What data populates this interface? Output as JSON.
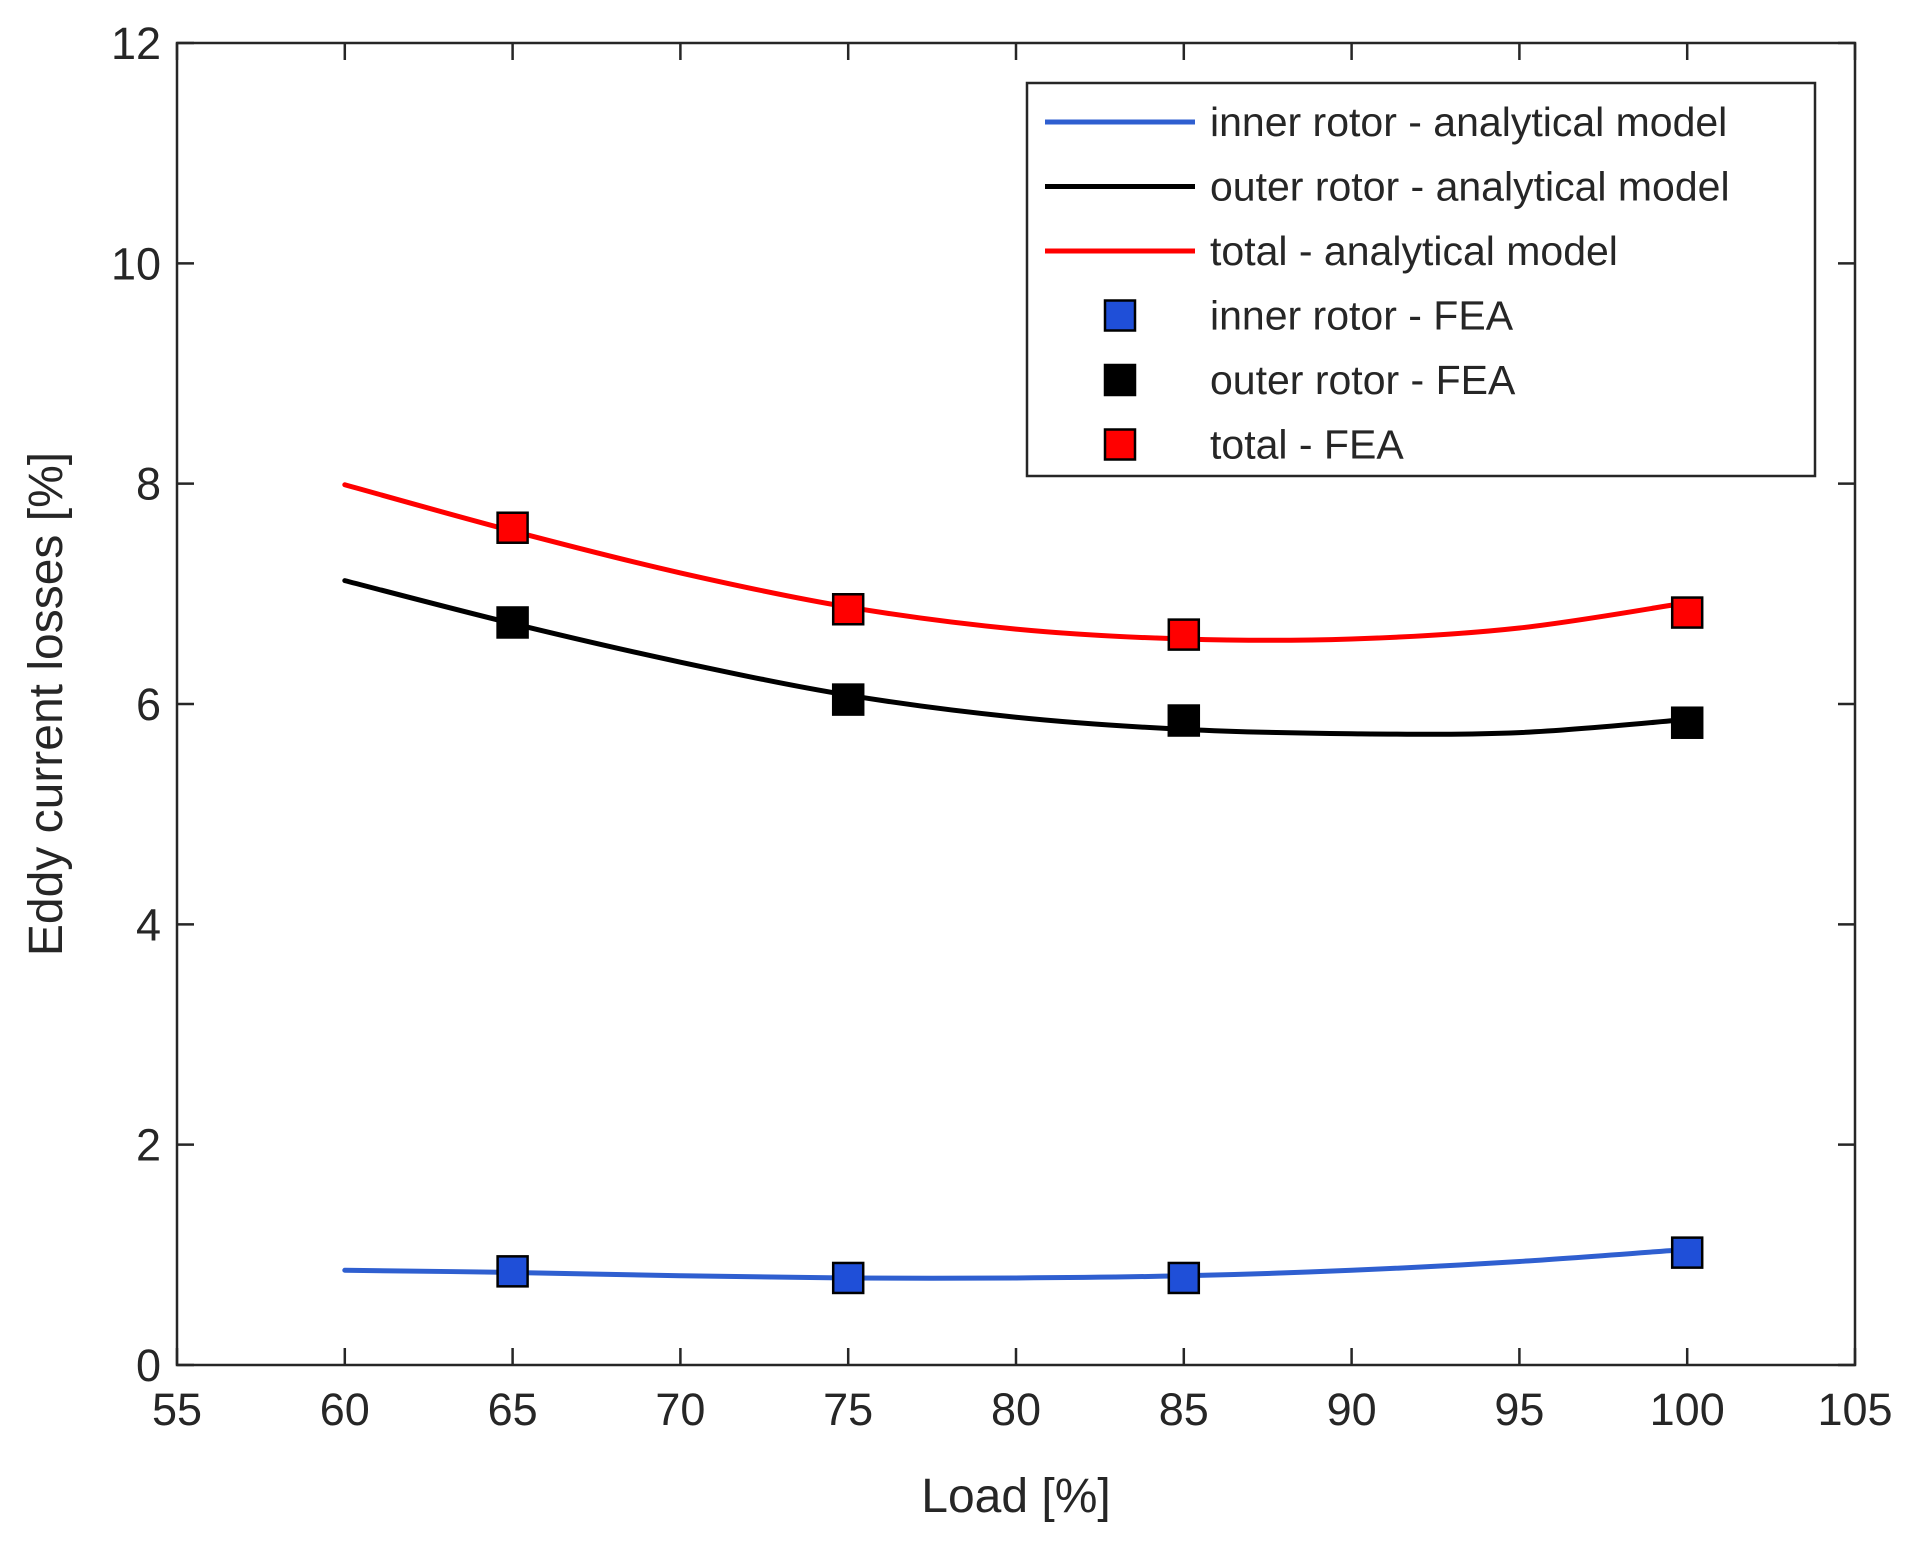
{
  "chart_data": {
    "type": "line",
    "title": "",
    "xlabel": "Load [%]",
    "ylabel": "Eddy current losses [%]",
    "xlim": [
      55,
      105
    ],
    "ylim": [
      0,
      12
    ],
    "xticks": [
      55,
      60,
      65,
      70,
      75,
      80,
      85,
      90,
      95,
      100,
      105
    ],
    "yticks": [
      0,
      2,
      4,
      6,
      8,
      10,
      12
    ],
    "grid": false,
    "legend_position": "top-right",
    "series": [
      {
        "name": "inner rotor - analytical model",
        "kind": "line",
        "color": "#2f5fd0",
        "x": [
          60,
          65,
          70,
          75,
          80,
          85,
          90,
          95,
          100
        ],
        "y": [
          0.86,
          0.84,
          0.81,
          0.79,
          0.79,
          0.81,
          0.86,
          0.94,
          1.05
        ]
      },
      {
        "name": "outer rotor - analytical model",
        "kind": "line",
        "color": "#000000",
        "x": [
          60,
          65,
          70,
          75,
          80,
          85,
          90,
          95,
          100
        ],
        "y": [
          7.12,
          6.73,
          6.38,
          6.08,
          5.88,
          5.77,
          5.73,
          5.74,
          5.86
        ]
      },
      {
        "name": "total - analytical model",
        "kind": "line",
        "color": "#ff0000",
        "x": [
          60,
          65,
          70,
          75,
          80,
          85,
          90,
          95,
          100
        ],
        "y": [
          7.99,
          7.57,
          7.19,
          6.88,
          6.68,
          6.59,
          6.59,
          6.69,
          6.92
        ]
      },
      {
        "name": "inner rotor - FEA",
        "kind": "marker",
        "color": "#1f4fd8",
        "x": [
          65,
          75,
          85,
          100
        ],
        "y": [
          0.85,
          0.79,
          0.79,
          1.02
        ]
      },
      {
        "name": "outer rotor - FEA",
        "kind": "marker",
        "color": "#000000",
        "x": [
          65,
          75,
          85,
          100
        ],
        "y": [
          6.74,
          6.04,
          5.85,
          5.83
        ]
      },
      {
        "name": "total - FEA",
        "kind": "marker",
        "color": "#ff0000",
        "x": [
          65,
          75,
          85,
          100
        ],
        "y": [
          7.6,
          6.86,
          6.63,
          6.83
        ]
      }
    ]
  }
}
